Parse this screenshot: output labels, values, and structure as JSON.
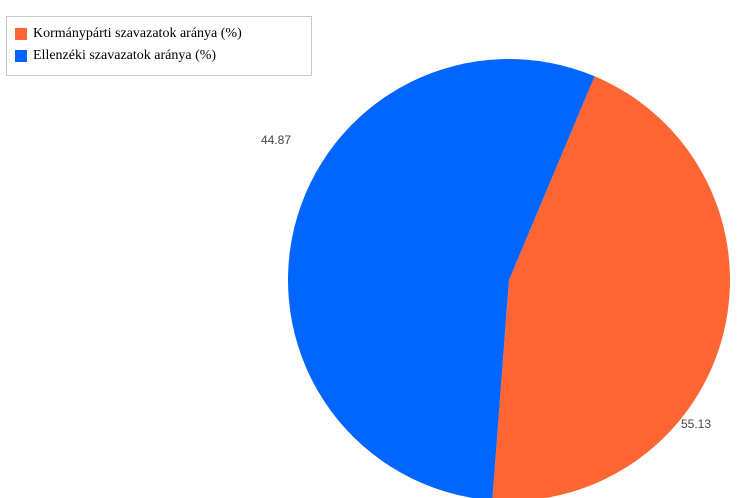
{
  "chart_data": {
    "type": "pie",
    "title": "",
    "legend_position": "top-left",
    "start_angle_deg": 22.8,
    "slices": [
      {
        "label": "Kormánypárti szavazatok aránya (%)",
        "value": 44.87,
        "value_label": "44.87",
        "color": "#ff6633"
      },
      {
        "label": "Ellenzéki szavazatok aránya (%)",
        "value": 55.13,
        "value_label": "55.13",
        "color": "#0066ff"
      }
    ]
  }
}
